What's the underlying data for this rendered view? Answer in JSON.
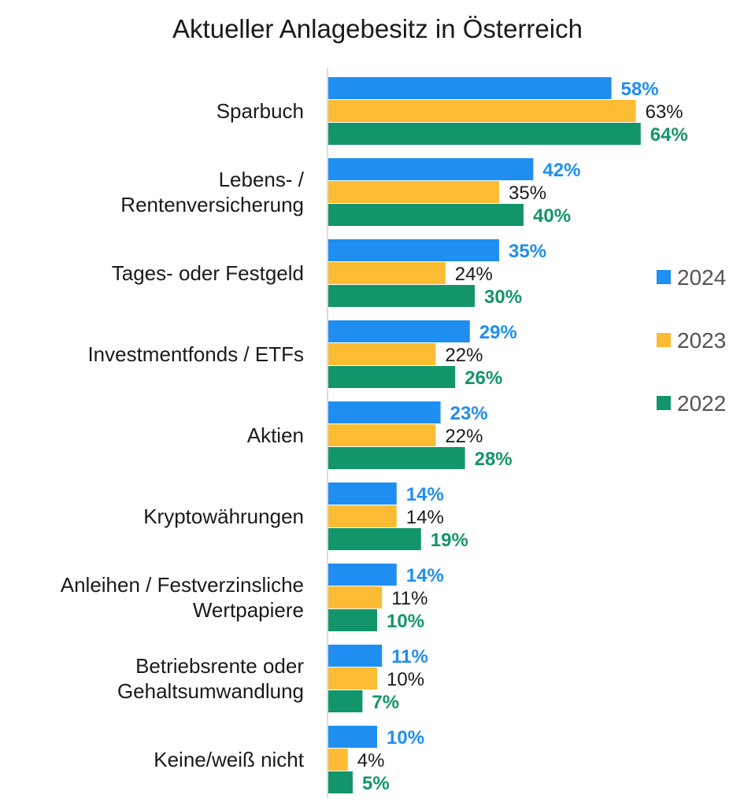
{
  "chart_data": {
    "type": "bar",
    "orientation": "horizontal",
    "title": "Aktueller Anlagebesitz in Österreich",
    "categories": [
      [
        "Sparbuch"
      ],
      [
        "Lebens- /",
        "Rentenversicherung"
      ],
      [
        "Tages- oder Festgeld"
      ],
      [
        "Investmentfonds / ETFs"
      ],
      [
        "Aktien"
      ],
      [
        "Kryptowährungen"
      ],
      [
        "Anleihen / Festverzinsliche",
        "Wertpapiere"
      ],
      [
        "Betriebsrente oder",
        "Gehaltsumwandlung"
      ],
      [
        "Keine/weiß nicht"
      ]
    ],
    "series": [
      {
        "name": "2024",
        "color": "#1f8ef1",
        "label_color": "#1f8ef1",
        "label_bold": true,
        "values": [
          58,
          42,
          35,
          29,
          23,
          14,
          14,
          11,
          10
        ]
      },
      {
        "name": "2023",
        "color": "#fbbb33",
        "label_color": "#1a1a1a",
        "label_bold": false,
        "values": [
          63,
          35,
          24,
          22,
          22,
          14,
          11,
          10,
          4
        ]
      },
      {
        "name": "2022",
        "color": "#12956a",
        "label_color": "#12956a",
        "label_bold": true,
        "values": [
          64,
          40,
          30,
          26,
          28,
          19,
          10,
          7,
          5
        ]
      }
    ],
    "value_suffix": "%",
    "xlim": [
      0,
      100
    ],
    "grid": false,
    "legend_position": "right"
  }
}
